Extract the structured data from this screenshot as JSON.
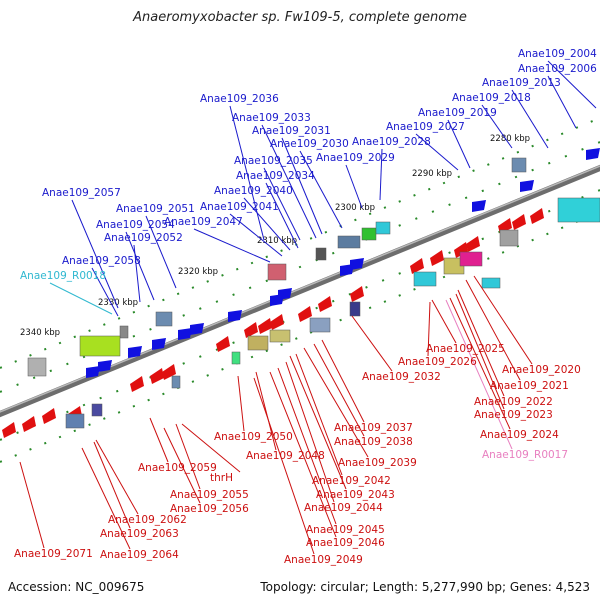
{
  "title": "Anaeromyxobacter sp. Fw109-5, complete genome",
  "footer": {
    "accession": "Accession: NC_009675",
    "topology": "Topology: circular; Length: 5,277,990 bp; Genes: 4,523"
  },
  "colors": {
    "forward_gene": "#1010e0",
    "reverse_gene": "#e01010",
    "rna": "#30c8d8",
    "pseudo": "#e880c0",
    "backbone": "#808080",
    "ticks": "#2a8a2a"
  },
  "scale_labels": [
    "2280 kbp",
    "2290 kbp",
    "2300 kbp",
    "2310 kbp",
    "2320 kbp",
    "2330 kbp",
    "2340 kbp"
  ],
  "top_labels": [
    {
      "text": "Anae109_2004",
      "color": "#1a1acc"
    },
    {
      "text": "Anae109_2006",
      "color": "#1a1acc"
    },
    {
      "text": "Anae109_2013",
      "color": "#1a1acc"
    },
    {
      "text": "Anae109_2018",
      "color": "#1a1acc"
    },
    {
      "text": "Anae109_2019",
      "color": "#1a1acc"
    },
    {
      "text": "Anae109_2027",
      "color": "#1a1acc"
    },
    {
      "text": "Anae109_2028",
      "color": "#1a1acc"
    },
    {
      "text": "Anae109_2029",
      "color": "#1a1acc"
    },
    {
      "text": "Anae109_2030",
      "color": "#1a1acc"
    },
    {
      "text": "Anae109_2031",
      "color": "#1a1acc"
    },
    {
      "text": "Anae109_2033",
      "color": "#1a1acc"
    },
    {
      "text": "Anae109_2036",
      "color": "#1a1acc"
    },
    {
      "text": "Anae109_2035",
      "color": "#1a1acc"
    },
    {
      "text": "Anae109_2034",
      "color": "#1a1acc"
    },
    {
      "text": "Anae109_2040",
      "color": "#1a1acc"
    },
    {
      "text": "Anae109_2041",
      "color": "#1a1acc"
    },
    {
      "text": "Anae109_2047",
      "color": "#1a1acc"
    },
    {
      "text": "Anae109_2051",
      "color": "#1a1acc"
    },
    {
      "text": "Anae109_2054",
      "color": "#1a1acc"
    },
    {
      "text": "Anae109_2052",
      "color": "#1a1acc"
    },
    {
      "text": "Anae109_2057",
      "color": "#1a1acc"
    },
    {
      "text": "Anae109_2058",
      "color": "#1a1acc"
    },
    {
      "text": "Anae109_R0018",
      "color": "#30b8d0"
    }
  ],
  "bottom_labels": [
    {
      "text": "Anae109_2025",
      "color": "#cc1010"
    },
    {
      "text": "Anae109_2026",
      "color": "#cc1010"
    },
    {
      "text": "Anae109_2020",
      "color": "#cc1010"
    },
    {
      "text": "Anae109_2021",
      "color": "#cc1010"
    },
    {
      "text": "Anae109_2022",
      "color": "#cc1010"
    },
    {
      "text": "Anae109_2023",
      "color": "#cc1010"
    },
    {
      "text": "Anae109_2024",
      "color": "#cc1010"
    },
    {
      "text": "Anae109_R0017",
      "color": "#e880c0"
    },
    {
      "text": "Anae109_2032",
      "color": "#cc1010"
    },
    {
      "text": "Anae109_2037",
      "color": "#cc1010"
    },
    {
      "text": "Anae109_2038",
      "color": "#cc1010"
    },
    {
      "text": "Anae109_2039",
      "color": "#cc1010"
    },
    {
      "text": "Anae109_2050",
      "color": "#cc1010"
    },
    {
      "text": "Anae109_2048",
      "color": "#cc1010"
    },
    {
      "text": "Anae109_2042",
      "color": "#cc1010"
    },
    {
      "text": "Anae109_2043",
      "color": "#cc1010"
    },
    {
      "text": "Anae109_2044",
      "color": "#cc1010"
    },
    {
      "text": "Anae109_2045",
      "color": "#cc1010"
    },
    {
      "text": "Anae109_2046",
      "color": "#cc1010"
    },
    {
      "text": "Anae109_2049",
      "color": "#cc1010"
    },
    {
      "text": "Anae109_2059",
      "color": "#cc1010"
    },
    {
      "text": "thrH",
      "color": "#cc1010"
    },
    {
      "text": "Anae109_2055",
      "color": "#cc1010"
    },
    {
      "text": "Anae109_2056",
      "color": "#cc1010"
    },
    {
      "text": "Anae109_2062",
      "color": "#cc1010"
    },
    {
      "text": "Anae109_2063",
      "color": "#cc1010"
    },
    {
      "text": "Anae109_2064",
      "color": "#cc1010"
    },
    {
      "text": "Anae109_2071",
      "color": "#cc1010"
    }
  ]
}
